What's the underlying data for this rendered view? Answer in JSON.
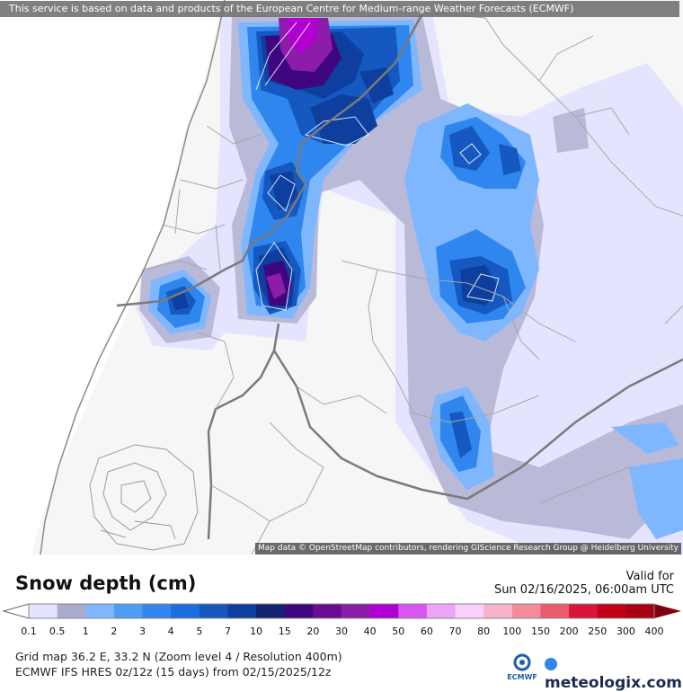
{
  "banner": "This service is based on data and products of the European Centre for Medium-range Weather Forecasts (ECMWF)",
  "attribution": "Map data © OpenStreetMap contributors, rendering GIScience Research Group @ Heidelberg University",
  "legend": {
    "title": "Snow depth (cm)",
    "valid_label": "Valid for",
    "valid_date": "Sun 02/16/2025, 06:00am UTC",
    "ticks": [
      "0.1",
      "0.5",
      "1",
      "2",
      "3",
      "4",
      "5",
      "7",
      "10",
      "15",
      "20",
      "30",
      "40",
      "50",
      "60",
      "70",
      "80",
      "100",
      "150",
      "200",
      "250",
      "300",
      "400"
    ],
    "colors": [
      "#e4e4ff",
      "#aaaacc",
      "#7fb7ff",
      "#4d9df5",
      "#2f86ef",
      "#1a6ee0",
      "#1558c0",
      "#0e3f9e",
      "#122470",
      "#3e0780",
      "#6a0c92",
      "#8c1da8",
      "#b000d0",
      "#d855f0",
      "#eea4f7",
      "#f9d0fb",
      "#f7b2cc",
      "#f48a9a",
      "#ec5c6c",
      "#d8163a",
      "#c20018",
      "#a60012",
      "#800010"
    ],
    "grid_info": "Grid map 36.2 E, 33.2 N (Zoom level 4 / Resolution 400m)",
    "model_info": "ECMWF IFS HRES 0z/12z (15 days) from  02/15/2025/12z",
    "ecmwf_label": "ECMWF",
    "brand": "meteologix.com"
  }
}
